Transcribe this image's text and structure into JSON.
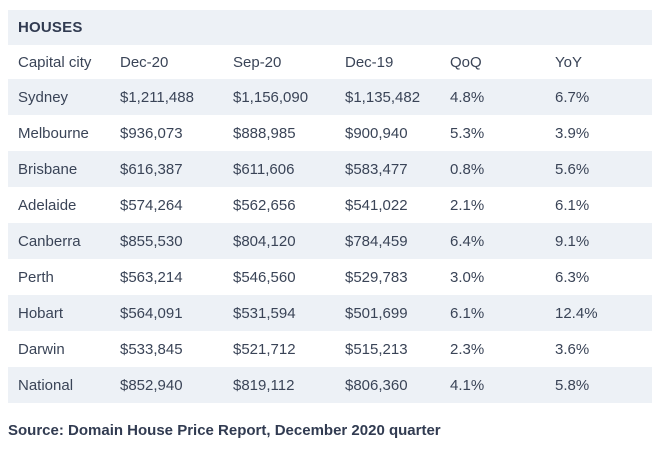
{
  "colors": {
    "row_stripe": "#edf1f6",
    "background": "#ffffff",
    "text": "#3a4457",
    "title_text": "#313b51"
  },
  "header": {
    "title": "HOUSES"
  },
  "table": {
    "columns": [
      "Capital city",
      "Dec-20",
      "Sep-20",
      "Dec-19",
      "QoQ",
      "YoY"
    ],
    "row_keys": [
      "city",
      "dec20",
      "sep20",
      "dec19",
      "qoq",
      "yoy"
    ],
    "rows": [
      {
        "city": "Sydney",
        "dec20": "$1,211,488",
        "sep20": "$1,156,090",
        "dec19": "$1,135,482",
        "qoq": "4.8%",
        "yoy": "6.7%"
      },
      {
        "city": "Melbourne",
        "dec20": "$936,073",
        "sep20": "$888,985",
        "dec19": "$900,940",
        "qoq": "5.3%",
        "yoy": "3.9%"
      },
      {
        "city": "Brisbane",
        "dec20": "$616,387",
        "sep20": "$611,606",
        "dec19": "$583,477",
        "qoq": "0.8%",
        "yoy": "5.6%"
      },
      {
        "city": "Adelaide",
        "dec20": "$574,264",
        "sep20": "$562,656",
        "dec19": "$541,022",
        "qoq": "2.1%",
        "yoy": "6.1%"
      },
      {
        "city": "Canberra",
        "dec20": "$855,530",
        "sep20": "$804,120",
        "dec19": "$784,459",
        "qoq": "6.4%",
        "yoy": "9.1%"
      },
      {
        "city": "Perth",
        "dec20": "$563,214",
        "sep20": "$546,560",
        "dec19": "$529,783",
        "qoq": "3.0%",
        "yoy": "6.3%"
      },
      {
        "city": "Hobart",
        "dec20": "$564,091",
        "sep20": "$531,594",
        "dec19": "$501,699",
        "qoq": "6.1%",
        "yoy": "12.4%"
      },
      {
        "city": "Darwin",
        "dec20": "$533,845",
        "sep20": "$521,712",
        "dec19": "$515,213",
        "qoq": "2.3%",
        "yoy": "3.6%"
      },
      {
        "city": "National",
        "dec20": "$852,940",
        "sep20": "$819,112",
        "dec19": "$806,360",
        "qoq": "4.1%",
        "yoy": "5.8%"
      }
    ]
  },
  "footer": {
    "source": "Source: Domain House Price Report, December 2020 quarter"
  },
  "chart_data": {
    "type": "table",
    "title": "HOUSES",
    "columns": [
      "Capital city",
      "Dec-20",
      "Sep-20",
      "Dec-19",
      "QoQ",
      "YoY"
    ],
    "rows": [
      [
        "Sydney",
        1211488,
        1156090,
        1135482,
        4.8,
        6.7
      ],
      [
        "Melbourne",
        936073,
        888985,
        900940,
        5.3,
        3.9
      ],
      [
        "Brisbane",
        616387,
        611606,
        583477,
        0.8,
        5.6
      ],
      [
        "Adelaide",
        574264,
        562656,
        541022,
        2.1,
        6.1
      ],
      [
        "Canberra",
        855530,
        804120,
        784459,
        6.4,
        9.1
      ],
      [
        "Perth",
        563214,
        546560,
        529783,
        3.0,
        6.3
      ],
      [
        "Hobart",
        564091,
        531594,
        501699,
        6.1,
        12.4
      ],
      [
        "Darwin",
        533845,
        521712,
        515213,
        2.3,
        3.6
      ],
      [
        "National",
        852940,
        819112,
        806360,
        4.1,
        5.8
      ]
    ],
    "value_units": {
      "prices": "AUD",
      "qoq_yoy": "percent"
    },
    "source": "Source: Domain House Price Report, December 2020 quarter"
  }
}
